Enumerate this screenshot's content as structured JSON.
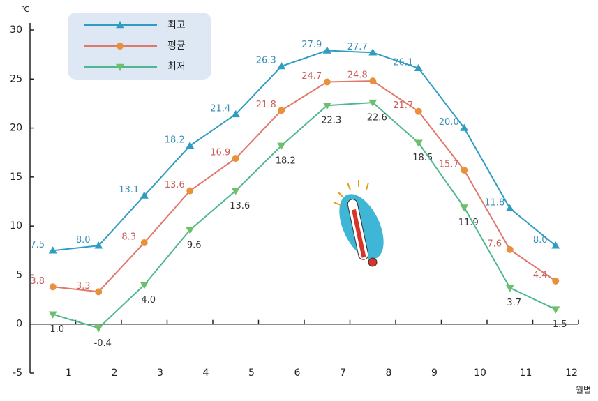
{
  "chart_data": {
    "type": "line",
    "y_unit": "℃",
    "x_label": "월별",
    "categories": [
      "1",
      "2",
      "3",
      "4",
      "5",
      "6",
      "7",
      "8",
      "9",
      "10",
      "11",
      "12"
    ],
    "series": [
      {
        "name": "최고",
        "color": "#2f9cc2",
        "marker_color": "#2f9cc2",
        "label_color": "#3a8fb8",
        "marker": "triangle-up",
        "values": [
          7.5,
          8.0,
          13.1,
          18.2,
          21.4,
          26.3,
          27.9,
          27.7,
          26.1,
          20.0,
          11.8,
          8.0
        ],
        "value_labels": [
          "7.5",
          "8.0",
          "13.1",
          "18.2",
          "21.4",
          "26.3",
          "27.9",
          "27.7",
          "26.1",
          "20.0",
          "11.8",
          "8.0"
        ]
      },
      {
        "name": "평균",
        "color": "#e0786a",
        "marker_color": "#e8913a",
        "label_color": "#c9605a",
        "marker": "circle",
        "values": [
          3.8,
          3.3,
          8.3,
          13.6,
          16.9,
          21.8,
          24.7,
          24.8,
          21.7,
          15.7,
          7.6,
          4.4
        ],
        "value_labels": [
          "3.8",
          "3.3",
          "8.3",
          "13.6",
          "16.9",
          "21.8",
          "24.7",
          "24.8",
          "21.7",
          "15.7",
          "7.6",
          "4.4"
        ]
      },
      {
        "name": "최저",
        "color": "#4fb88e",
        "marker_color": "#6cc06a",
        "label_color": "#333333",
        "marker": "triangle-down",
        "values": [
          1.0,
          -0.4,
          4.0,
          9.6,
          13.6,
          18.2,
          22.3,
          22.6,
          18.5,
          11.9,
          3.7,
          1.5
        ],
        "value_labels": [
          "1.0",
          "-0.4",
          "4.0",
          "9.6",
          "13.6",
          "18.2",
          "22.3",
          "22.6",
          "18.5",
          "11.9",
          "3.7",
          "1.5"
        ]
      }
    ],
    "ylim": [
      -5,
      30
    ],
    "yticks": [
      -5,
      0,
      5,
      10,
      15,
      20,
      25,
      30
    ],
    "grid": false
  }
}
